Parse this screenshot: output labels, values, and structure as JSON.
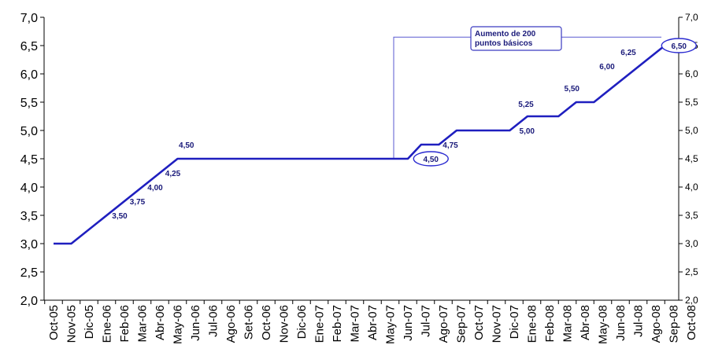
{
  "chart_data": {
    "type": "line",
    "title": "",
    "xlabel": "",
    "ylabel": "",
    "ylim": [
      2.0,
      7.0
    ],
    "y_ticks": [
      "2,0",
      "2,5",
      "3,0",
      "3,5",
      "4,0",
      "4,5",
      "5,0",
      "5,5",
      "6,0",
      "6,5",
      "7,0"
    ],
    "secondary_y_axis": true,
    "grid": false,
    "legend": "none",
    "line_color": "#1f1fbf",
    "label_color": "#1a1a7a",
    "categories": [
      "Oct-05",
      "Nov-05",
      "Dic-05",
      "Ene-06",
      "Feb-06",
      "Mar-06",
      "Abr-06",
      "May-06",
      "Jun-06",
      "Jul-06",
      "Ago-06",
      "Set-06",
      "Oct-06",
      "Nov-06",
      "Dic-06",
      "Ene-07",
      "Feb-07",
      "Mar-07",
      "Abr-07",
      "May-07",
      "Jun-07",
      "Jul-07",
      "Ago-07",
      "Sep-07",
      "Oct-07",
      "Nov-07",
      "Dic-07",
      "Ene-08",
      "Feb-08",
      "Mar-08",
      "Abr-08",
      "May-08",
      "Jun-08",
      "Jul-08",
      "Ago-08",
      "Sep-08",
      "Oct-08"
    ],
    "series": [
      {
        "points": [
          {
            "x": 0.0,
            "y": 3.0
          },
          {
            "x": 1.0,
            "y": 3.0
          },
          {
            "x": 7.0,
            "y": 4.5
          },
          {
            "x": 20.0,
            "y": 4.5
          },
          {
            "x": 20.75,
            "y": 4.75
          },
          {
            "x": 21.75,
            "y": 4.75
          },
          {
            "x": 22.75,
            "y": 5.0
          },
          {
            "x": 25.75,
            "y": 5.0
          },
          {
            "x": 26.75,
            "y": 5.25
          },
          {
            "x": 28.5,
            "y": 5.25
          },
          {
            "x": 29.5,
            "y": 5.5
          },
          {
            "x": 30.5,
            "y": 5.5
          },
          {
            "x": 34.5,
            "y": 6.5
          },
          {
            "x": 35.5,
            "y": 6.5
          }
        ]
      }
    ],
    "data_labels": [
      {
        "text": "3,50",
        "x": 4.0,
        "y": 3.5
      },
      {
        "text": "3,75",
        "x": 5.0,
        "y": 3.75
      },
      {
        "text": "4,00",
        "x": 6.0,
        "y": 4.0
      },
      {
        "text": "4,25",
        "x": 7.0,
        "y": 4.25
      },
      {
        "text": "4,50",
        "x": 7.5,
        "y": 4.5
      },
      {
        "text": "4,50",
        "x": 21.3,
        "y": 4.5
      },
      {
        "text": "4,75",
        "x": 22.4,
        "y": 4.75
      },
      {
        "text": "5,00",
        "x": 26.9,
        "y": 5.0
      },
      {
        "text": "5,25",
        "x": 27.2,
        "y": 5.25
      },
      {
        "text": "5,50",
        "x": 29.7,
        "y": 5.5
      },
      {
        "text": "6,00",
        "x": 31.6,
        "y": 6.0
      },
      {
        "text": "6,25",
        "x": 32.8,
        "y": 6.25
      },
      {
        "text": "6,50",
        "x": 35.3,
        "y": 6.5
      }
    ],
    "circled_labels": [
      "4,50",
      "6,50"
    ],
    "annotation": {
      "lines": [
        "Aumento de 200",
        "puntos básicos"
      ]
    }
  }
}
